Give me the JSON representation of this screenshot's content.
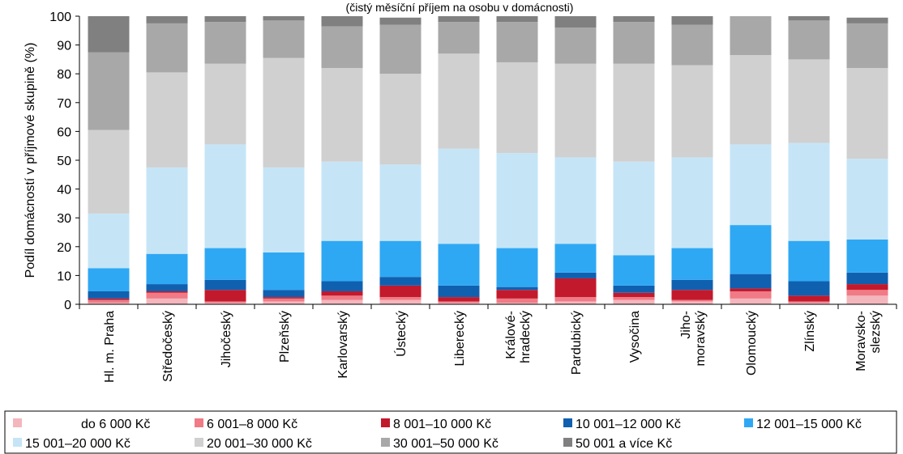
{
  "chart_data": {
    "type": "bar",
    "stacked": true,
    "subtitle": "(čistý měsíční příjem na osobu v domácnosti)",
    "ylabel": "Podíl domácností v příjmové skupině (%)",
    "ylim": [
      0,
      100
    ],
    "yticks": [
      "0",
      "10",
      "20",
      "30",
      "40",
      "50",
      "60",
      "70",
      "80",
      "90",
      "100"
    ],
    "grid": false,
    "legend_position": "bottom",
    "categories": [
      [
        "Hl. m. Praha"
      ],
      [
        "Středočeský"
      ],
      [
        "Jihočeský"
      ],
      [
        "Plzeňský"
      ],
      [
        "Karlovarský"
      ],
      [
        "Ústecký"
      ],
      [
        "Liberecký"
      ],
      [
        "Králové-",
        "hradecký"
      ],
      [
        "Pardubický"
      ],
      [
        "Vysočina"
      ],
      [
        "Jiho-",
        "moravský"
      ],
      [
        "Olomoucký"
      ],
      [
        "Zlínský"
      ],
      [
        "Moravsko-",
        "slezský"
      ]
    ],
    "series": [
      {
        "name": "do 6 000 Kč",
        "color": "#f4b6bd",
        "values": [
          0.5,
          2.0,
          0.5,
          1.0,
          1.5,
          1.5,
          0.5,
          0.5,
          1.0,
          1.5,
          1.0,
          2.0,
          0.5,
          3.0
        ]
      },
      {
        "name": "6 001–8 000 Kč",
        "color": "#f07a85",
        "values": [
          1.0,
          2.0,
          0.5,
          1.0,
          1.5,
          1.0,
          0.5,
          1.5,
          1.5,
          1.0,
          0.5,
          2.5,
          0.5,
          2.0
        ]
      },
      {
        "name": "8 001–10 000 Kč",
        "color": "#c3192c",
        "values": [
          0.5,
          0.5,
          4.0,
          0.5,
          1.5,
          4.0,
          1.5,
          3.0,
          6.5,
          1.5,
          3.5,
          1.0,
          2.0,
          2.0
        ]
      },
      {
        "name": "10 001–12 000 Kč",
        "color": "#1060b0",
        "values": [
          2.5,
          2.5,
          3.5,
          2.5,
          3.5,
          3.0,
          4.0,
          1.0,
          2.0,
          2.5,
          3.5,
          5.0,
          5.0,
          4.0
        ]
      },
      {
        "name": "12 001–15 000 Kč",
        "color": "#2fa8f4",
        "values": [
          8.0,
          10.5,
          11.0,
          13.0,
          14.0,
          12.5,
          14.5,
          13.5,
          10.0,
          10.5,
          11.0,
          17.0,
          14.0,
          11.5
        ]
      },
      {
        "name": "15 001–20 000 Kč",
        "color": "#c5e5f7",
        "values": [
          19.0,
          30.0,
          36.0,
          29.5,
          27.5,
          26.5,
          33.0,
          33.0,
          30.0,
          32.5,
          31.5,
          28.0,
          34.0,
          28.0
        ]
      },
      {
        "name": "20 001–30 000 Kč",
        "color": "#d0d0d0",
        "values": [
          29.0,
          33.0,
          28.0,
          38.0,
          32.5,
          31.5,
          33.0,
          31.5,
          32.5,
          34.0,
          32.0,
          31.0,
          29.0,
          31.5
        ]
      },
      {
        "name": "30 001–50 000 Kč",
        "color": "#a8a8a8",
        "values": [
          27.0,
          17.0,
          14.5,
          13.0,
          14.5,
          17.0,
          11.0,
          14.0,
          12.5,
          14.5,
          14.0,
          13.5,
          13.5,
          15.5
        ]
      },
      {
        "name": "50 001 a více Kč",
        "color": "#808080",
        "values": [
          12.5,
          2.5,
          2.0,
          1.5,
          3.5,
          2.5,
          2.0,
          2.0,
          4.0,
          2.0,
          3.0,
          0.0,
          1.5,
          2.0
        ]
      }
    ]
  }
}
